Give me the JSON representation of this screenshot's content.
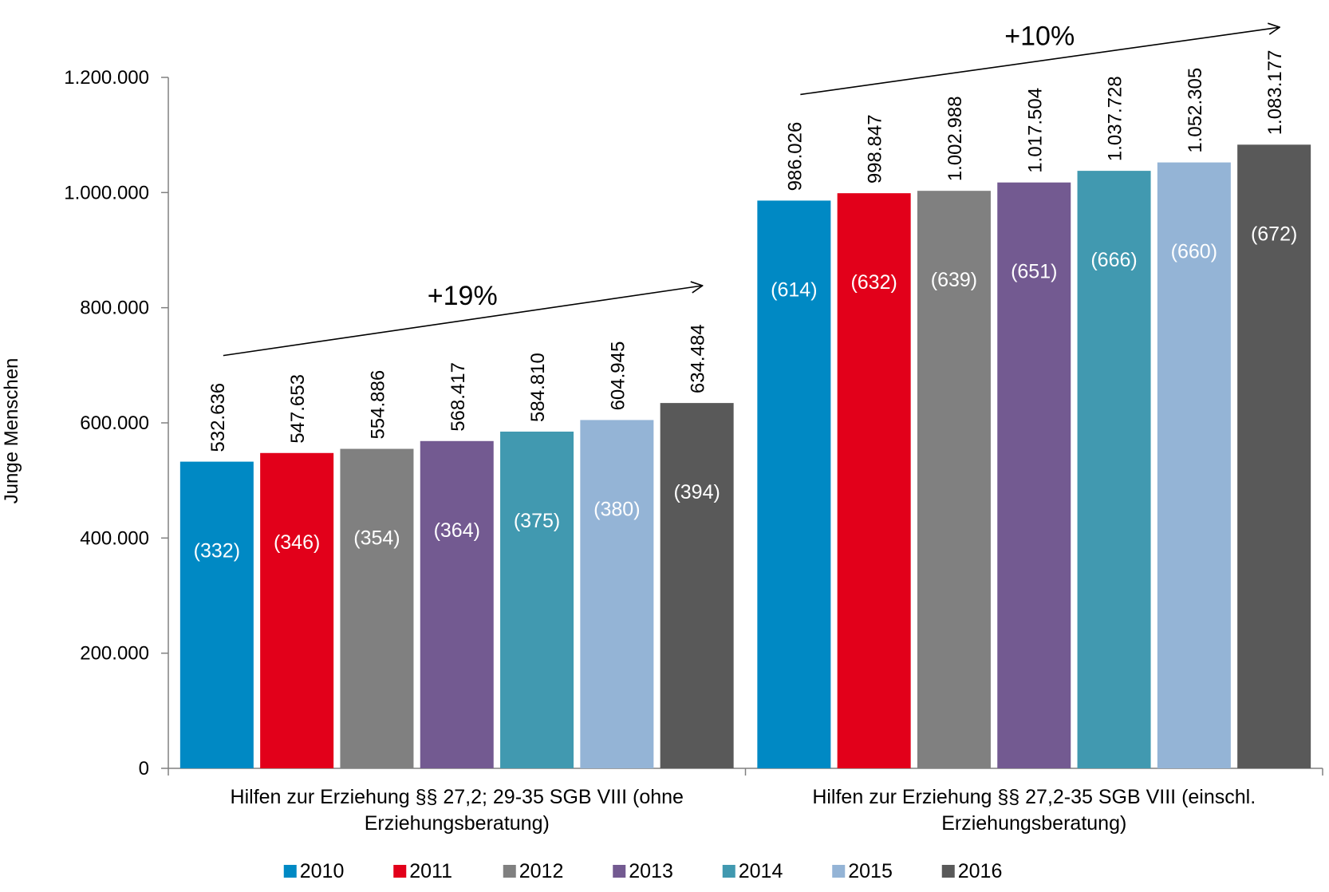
{
  "chart_data": {
    "type": "bar",
    "ylabel": "Junge Menschen",
    "ylim": [
      0,
      1200000
    ],
    "yticks": [
      0,
      200000,
      400000,
      600000,
      800000,
      1000000,
      1200000
    ],
    "ytick_labels": [
      "0",
      "200.000",
      "400.000",
      "600.000",
      "800.000",
      "1.000.000",
      "1.200.000"
    ],
    "grid": false,
    "legend_position": "bottom",
    "categories": [
      [
        "Hilfen zur Erziehung §§ 27,2; 29-35 SGB VIII (ohne",
        "Erziehungsberatung)"
      ],
      [
        "Hilfen zur Erziehung §§ 27,2-35 SGB VIII (einschl.",
        "Erziehungsberatung)"
      ]
    ],
    "series": [
      {
        "name": "2010",
        "color": "#0089c4",
        "values": [
          532636,
          986026
        ],
        "value_labels": [
          "532.636",
          "986.026"
        ],
        "inner_labels": [
          "(332)",
          "(614)"
        ]
      },
      {
        "name": "2011",
        "color": "#e2001a",
        "values": [
          547653,
          998847
        ],
        "value_labels": [
          "547.653",
          "998.847"
        ],
        "inner_labels": [
          "(346)",
          "(632)"
        ]
      },
      {
        "name": "2012",
        "color": "#808080",
        "values": [
          554886,
          1002988
        ],
        "value_labels": [
          "554.886",
          "1.002.988"
        ],
        "inner_labels": [
          "(354)",
          "(639)"
        ]
      },
      {
        "name": "2013",
        "color": "#735a91",
        "values": [
          568417,
          1017504
        ],
        "value_labels": [
          "568.417",
          "1.017.504"
        ],
        "inner_labels": [
          "(364)",
          "(651)"
        ]
      },
      {
        "name": "2014",
        "color": "#4199b0",
        "values": [
          584810,
          1037728
        ],
        "value_labels": [
          "584.810",
          "1.037.728"
        ],
        "inner_labels": [
          "(375)",
          "(666)"
        ]
      },
      {
        "name": "2015",
        "color": "#94b4d6",
        "values": [
          604945,
          1052305
        ],
        "value_labels": [
          "604.945",
          "1.052.305"
        ],
        "inner_labels": [
          "(380)",
          "(660)"
        ]
      },
      {
        "name": "2016",
        "color": "#595959",
        "values": [
          634484,
          1083177
        ],
        "value_labels": [
          "634.484",
          "1.083.177"
        ],
        "inner_labels": [
          "(394)",
          "(672)"
        ]
      }
    ],
    "annotations": [
      {
        "text": "+19%",
        "group": 0
      },
      {
        "text": "+10%",
        "group": 1
      }
    ]
  }
}
